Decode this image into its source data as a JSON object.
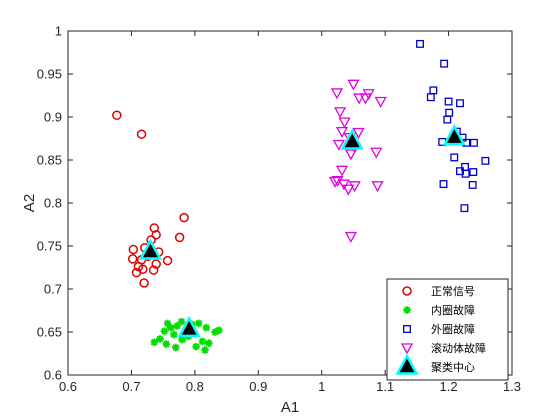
{
  "chart_data": {
    "type": "scatter",
    "title": "",
    "xlabel": "A1",
    "ylabel": "A2",
    "xlim": [
      0.6,
      1.3
    ],
    "ylim": [
      0.6,
      1.0
    ],
    "xticks": [
      "0.6",
      "0.7",
      "0.8",
      "0.9",
      "1",
      "1.1",
      "1.2",
      "1.3"
    ],
    "yticks": [
      "0.6",
      "0.65",
      "0.7",
      "0.75",
      "0.8",
      "0.85",
      "0.9",
      "0.95",
      "1"
    ],
    "grid": false,
    "legend_position": "bottom-right",
    "series": [
      {
        "name": "正常信号",
        "marker": "circle",
        "color": "#e00000",
        "points": [
          [
            0.677,
            0.902
          ],
          [
            0.716,
            0.88
          ],
          [
            0.783,
            0.783
          ],
          [
            0.736,
            0.771
          ],
          [
            0.776,
            0.76
          ],
          [
            0.739,
            0.763
          ],
          [
            0.731,
            0.757
          ],
          [
            0.703,
            0.746
          ],
          [
            0.721,
            0.748
          ],
          [
            0.743,
            0.743
          ],
          [
            0.757,
            0.733
          ],
          [
            0.702,
            0.735
          ],
          [
            0.716,
            0.734
          ],
          [
            0.726,
            0.738
          ],
          [
            0.739,
            0.729
          ],
          [
            0.711,
            0.726
          ],
          [
            0.718,
            0.723
          ],
          [
            0.735,
            0.722
          ],
          [
            0.708,
            0.719
          ],
          [
            0.72,
            0.707
          ]
        ]
      },
      {
        "name": "内圈故障",
        "marker": "asterisk",
        "color": "#00dd00",
        "points": [
          [
            0.757,
            0.66
          ],
          [
            0.779,
            0.662
          ],
          [
            0.806,
            0.66
          ],
          [
            0.795,
            0.659
          ],
          [
            0.772,
            0.657
          ],
          [
            0.762,
            0.655
          ],
          [
            0.818,
            0.655
          ],
          [
            0.838,
            0.652
          ],
          [
            0.752,
            0.651
          ],
          [
            0.832,
            0.65
          ],
          [
            0.8,
            0.648
          ],
          [
            0.767,
            0.647
          ],
          [
            0.79,
            0.645
          ],
          [
            0.745,
            0.642
          ],
          [
            0.78,
            0.641
          ],
          [
            0.812,
            0.639
          ],
          [
            0.736,
            0.638
          ],
          [
            0.822,
            0.637
          ],
          [
            0.755,
            0.636
          ],
          [
            0.802,
            0.633
          ],
          [
            0.77,
            0.632
          ],
          [
            0.816,
            0.629
          ]
        ]
      },
      {
        "name": "外圈故障",
        "marker": "square",
        "color": "#0000cc",
        "points": [
          [
            1.155,
            0.985
          ],
          [
            1.193,
            0.962
          ],
          [
            1.176,
            0.931
          ],
          [
            1.172,
            0.923
          ],
          [
            1.2,
            0.918
          ],
          [
            1.218,
            0.916
          ],
          [
            1.201,
            0.905
          ],
          [
            1.198,
            0.897
          ],
          [
            1.213,
            0.883
          ],
          [
            1.222,
            0.876
          ],
          [
            1.228,
            0.87
          ],
          [
            1.19,
            0.871
          ],
          [
            1.24,
            0.87
          ],
          [
            1.209,
            0.853
          ],
          [
            1.258,
            0.849
          ],
          [
            1.226,
            0.842
          ],
          [
            1.218,
            0.837
          ],
          [
            1.239,
            0.836
          ],
          [
            1.227,
            0.834
          ],
          [
            1.238,
            0.821
          ],
          [
            1.192,
            0.822
          ],
          [
            1.225,
            0.794
          ]
        ]
      },
      {
        "name": "滚动体故障",
        "marker": "triangle-down",
        "color": "#e000e0",
        "points": [
          [
            1.05,
            0.938
          ],
          [
            1.024,
            0.928
          ],
          [
            1.074,
            0.927
          ],
          [
            1.059,
            0.922
          ],
          [
            1.069,
            0.922
          ],
          [
            1.093,
            0.918
          ],
          [
            1.029,
            0.906
          ],
          [
            1.036,
            0.894
          ],
          [
            1.032,
            0.883
          ],
          [
            1.058,
            0.882
          ],
          [
            1.044,
            0.876
          ],
          [
            1.027,
            0.868
          ],
          [
            1.052,
            0.865
          ],
          [
            1.086,
            0.859
          ],
          [
            1.046,
            0.857
          ],
          [
            1.032,
            0.838
          ],
          [
            1.025,
            0.826
          ],
          [
            1.021,
            0.825
          ],
          [
            1.035,
            0.822
          ],
          [
            1.052,
            0.82
          ],
          [
            1.088,
            0.82
          ],
          [
            1.042,
            0.816
          ],
          [
            1.046,
            0.761
          ]
        ]
      },
      {
        "name": "聚类中心",
        "marker": "center",
        "color": "#00ffff",
        "fill": "#000000",
        "points": [
          [
            0.73,
            0.743
          ],
          [
            0.791,
            0.653
          ],
          [
            1.048,
            0.871
          ],
          [
            1.209,
            0.876
          ]
        ]
      }
    ]
  }
}
